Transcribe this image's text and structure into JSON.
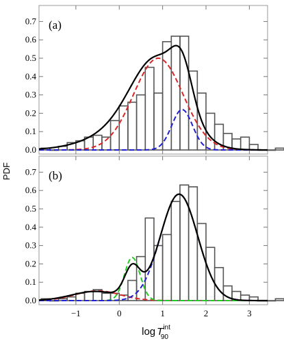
{
  "figure": {
    "ylabel": "PDF",
    "xlabel_base": "log",
    "xlabel_var": "T",
    "xlabel_sup": "int",
    "xlabel_sub": "90"
  },
  "chart_data": [
    {
      "type": "bar",
      "panel_label": "(a)",
      "xlim": [
        -1.85,
        3.42
      ],
      "ylim": [
        0,
        0.75
      ],
      "xticks": [
        -1,
        0,
        1,
        2,
        3
      ],
      "xtick_labels": [
        "",
        "",
        "",
        "",
        ""
      ],
      "yticks": [
        0.0,
        0.1,
        0.2,
        0.3,
        0.4,
        0.5,
        0.6,
        0.7
      ],
      "ytick_labels": [
        "0.0",
        "0.1",
        "0.2",
        "0.3",
        "0.4",
        "0.5",
        "0.6",
        "0.7"
      ],
      "bin_width": 0.2,
      "bin_start": -1.8,
      "values": [
        0.01,
        0.0,
        0.02,
        0.04,
        0.05,
        0.07,
        0.08,
        0.07,
        0.16,
        0.24,
        0.26,
        0.3,
        0.45,
        0.31,
        0.59,
        0.62,
        0.62,
        0.43,
        0.31,
        0.2,
        0.14,
        0.09,
        0.06,
        0.07,
        0.03,
        0.0,
        0.0,
        0.01
      ],
      "series": [
        {
          "color": "#000000",
          "style": "solid",
          "components": [
            {
              "w": 0.43,
              "mu": 0.9,
              "sigma": 0.6
            },
            {
              "w": 0.22,
              "mu": 1.45,
              "sigma": 0.24
            },
            {
              "w": 0.1,
              "mu": 0.2,
              "sigma": 0.85
            }
          ]
        },
        {
          "color": "#d62728",
          "style": "dashed",
          "components": [
            {
              "w": 0.5,
              "mu": 0.9,
              "sigma": 0.57
            }
          ]
        },
        {
          "color": "#1f1fd1",
          "style": "dashed",
          "components": [
            {
              "w": 0.22,
              "mu": 1.45,
              "sigma": 0.24
            }
          ]
        }
      ]
    },
    {
      "type": "bar",
      "panel_label": "(b)",
      "xlim": [
        -1.85,
        3.42
      ],
      "ylim": [
        0,
        0.75
      ],
      "xticks": [
        -1,
        0,
        1,
        2,
        3
      ],
      "xtick_labels": [
        "−1",
        "0",
        "1",
        "2",
        "3"
      ],
      "yticks": [
        0.0,
        0.1,
        0.2,
        0.3,
        0.4,
        0.5,
        0.6,
        0.7
      ],
      "ytick_labels": [
        "0.0",
        "0.1",
        "0.2",
        "0.3",
        "0.4",
        "0.5",
        "0.6",
        "0.7"
      ],
      "bin_width": 0.2,
      "bin_start": -1.8,
      "values": [
        0.01,
        0.0,
        0.01,
        0.02,
        0.04,
        0.05,
        0.06,
        0.04,
        0.04,
        0.03,
        0.11,
        0.24,
        0.45,
        0.3,
        0.36,
        0.54,
        0.63,
        0.62,
        0.42,
        0.29,
        0.18,
        0.08,
        0.05,
        0.03,
        0.02,
        0.0,
        0.0,
        0.01
      ],
      "series": [
        {
          "color": "#000000",
          "style": "solid",
          "components": [
            {
              "w": 0.58,
              "mu": 1.38,
              "sigma": 0.43
            },
            {
              "w": 0.16,
              "mu": 0.3,
              "sigma": 0.18
            },
            {
              "w": 0.05,
              "mu": -0.55,
              "sigma": 0.55
            }
          ]
        },
        {
          "color": "#d62728",
          "style": "dashed",
          "components": [
            {
              "w": 0.053,
              "mu": -0.5,
              "sigma": 0.52
            }
          ]
        },
        {
          "color": "#22cc22",
          "style": "dashed",
          "components": [
            {
              "w": 0.235,
              "mu": 0.3,
              "sigma": 0.18
            }
          ]
        },
        {
          "color": "#1f1fd1",
          "style": "dashed",
          "components": [
            {
              "w": 0.58,
              "mu": 1.38,
              "sigma": 0.43
            }
          ]
        }
      ]
    }
  ]
}
